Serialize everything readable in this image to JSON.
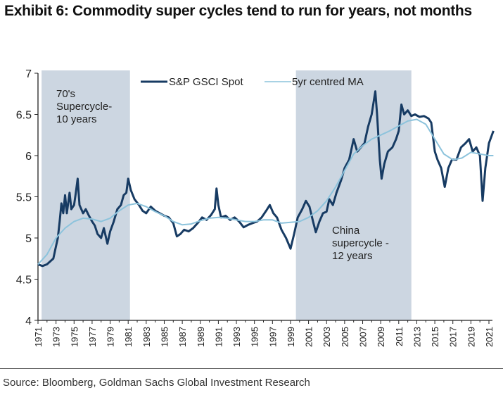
{
  "title": "Exhibit 6: Commodity super cycles tend to run for years, not months",
  "source": "Source: Bloomberg, Goldman Sachs Global Investment Research",
  "colors": {
    "spot": "#173b63",
    "ma": "#8cc3dc",
    "shade": "#ccd6e1",
    "axis": "#222222"
  },
  "chart_data": {
    "type": "line",
    "title": "Exhibit 6: Commodity super cycles tend to run for years, not months",
    "xlabel": "",
    "ylabel": "",
    "ylim": [
      4,
      7
    ],
    "xlim": [
      1971,
      2021.5
    ],
    "yticks": [
      "4",
      "4.5",
      "5",
      "5.5",
      "6",
      "6.5",
      "7"
    ],
    "xticks": [
      "1971",
      "1973",
      "1975",
      "1977",
      "1979",
      "1981",
      "1983",
      "1985",
      "1987",
      "1989",
      "1991",
      "1993",
      "1995",
      "1997",
      "1999",
      "2001",
      "2003",
      "2005",
      "2007",
      "2009",
      "2011",
      "2013",
      "2015",
      "2017",
      "2019",
      "2021"
    ],
    "legend": {
      "placement": "top-center",
      "entries": [
        "S&P GSCI Spot",
        "5yr centred MA"
      ]
    },
    "shaded_periods": [
      {
        "start": 1971.4,
        "end": 1981.2,
        "label_lines": [
          "70's",
          "Supercycle-",
          "10 years"
        ]
      },
      {
        "start": 1999.6,
        "end": 2012.4,
        "label_lines": [
          "China",
          "supercycle -",
          "12 years"
        ]
      }
    ],
    "series": [
      {
        "name": "S&P GSCI Spot",
        "points": [
          [
            1971,
            4.68
          ],
          [
            1971.5,
            4.66
          ],
          [
            1972,
            4.68
          ],
          [
            1972.4,
            4.72
          ],
          [
            1972.7,
            4.75
          ],
          [
            1973,
            4.9
          ],
          [
            1973.2,
            5.0
          ],
          [
            1973.4,
            5.2
          ],
          [
            1973.6,
            5.42
          ],
          [
            1973.8,
            5.3
          ],
          [
            1974,
            5.52
          ],
          [
            1974.2,
            5.3
          ],
          [
            1974.5,
            5.55
          ],
          [
            1974.7,
            5.35
          ],
          [
            1975,
            5.4
          ],
          [
            1975.2,
            5.55
          ],
          [
            1975.4,
            5.72
          ],
          [
            1975.6,
            5.4
          ],
          [
            1976,
            5.3
          ],
          [
            1976.3,
            5.35
          ],
          [
            1976.6,
            5.28
          ],
          [
            1977,
            5.2
          ],
          [
            1977.3,
            5.15
          ],
          [
            1977.6,
            5.05
          ],
          [
            1978,
            5.0
          ],
          [
            1978.3,
            5.12
          ],
          [
            1978.7,
            4.93
          ],
          [
            1979,
            5.08
          ],
          [
            1979.4,
            5.2
          ],
          [
            1979.8,
            5.35
          ],
          [
            1980.2,
            5.4
          ],
          [
            1980.5,
            5.52
          ],
          [
            1980.8,
            5.55
          ],
          [
            1981,
            5.72
          ],
          [
            1981.3,
            5.58
          ],
          [
            1981.7,
            5.47
          ],
          [
            1982.2,
            5.4
          ],
          [
            1982.6,
            5.33
          ],
          [
            1983,
            5.3
          ],
          [
            1983.5,
            5.38
          ],
          [
            1984,
            5.33
          ],
          [
            1984.5,
            5.3
          ],
          [
            1985,
            5.27
          ],
          [
            1985.5,
            5.25
          ],
          [
            1986,
            5.18
          ],
          [
            1986.4,
            5.02
          ],
          [
            1986.8,
            5.05
          ],
          [
            1987.2,
            5.1
          ],
          [
            1987.7,
            5.08
          ],
          [
            1988.2,
            5.12
          ],
          [
            1988.7,
            5.18
          ],
          [
            1989.2,
            5.25
          ],
          [
            1989.7,
            5.22
          ],
          [
            1990.2,
            5.28
          ],
          [
            1990.6,
            5.35
          ],
          [
            1990.8,
            5.6
          ],
          [
            1991,
            5.4
          ],
          [
            1991.3,
            5.25
          ],
          [
            1991.8,
            5.27
          ],
          [
            1992.3,
            5.22
          ],
          [
            1992.8,
            5.25
          ],
          [
            1993.3,
            5.2
          ],
          [
            1993.8,
            5.13
          ],
          [
            1994.3,
            5.16
          ],
          [
            1994.8,
            5.18
          ],
          [
            1995.3,
            5.2
          ],
          [
            1995.8,
            5.25
          ],
          [
            1996.3,
            5.33
          ],
          [
            1996.7,
            5.4
          ],
          [
            1997.1,
            5.3
          ],
          [
            1997.5,
            5.25
          ],
          [
            1998,
            5.1
          ],
          [
            1998.5,
            5.0
          ],
          [
            1999,
            4.87
          ],
          [
            1999.4,
            5.05
          ],
          [
            1999.8,
            5.25
          ],
          [
            2000.3,
            5.35
          ],
          [
            2000.7,
            5.45
          ],
          [
            2001.1,
            5.38
          ],
          [
            2001.5,
            5.2
          ],
          [
            2001.8,
            5.07
          ],
          [
            2002.2,
            5.2
          ],
          [
            2002.6,
            5.3
          ],
          [
            2003,
            5.32
          ],
          [
            2003.3,
            5.47
          ],
          [
            2003.7,
            5.4
          ],
          [
            2004.1,
            5.55
          ],
          [
            2004.6,
            5.7
          ],
          [
            2005,
            5.85
          ],
          [
            2005.5,
            5.95
          ],
          [
            2006,
            6.2
          ],
          [
            2006.4,
            6.05
          ],
          [
            2006.8,
            6.1
          ],
          [
            2007.2,
            6.15
          ],
          [
            2007.6,
            6.35
          ],
          [
            2008,
            6.5
          ],
          [
            2008.4,
            6.78
          ],
          [
            2008.6,
            6.5
          ],
          [
            2008.9,
            5.95
          ],
          [
            2009.1,
            5.72
          ],
          [
            2009.4,
            5.9
          ],
          [
            2009.8,
            6.05
          ],
          [
            2010.3,
            6.1
          ],
          [
            2010.7,
            6.2
          ],
          [
            2011,
            6.3
          ],
          [
            2011.3,
            6.62
          ],
          [
            2011.6,
            6.5
          ],
          [
            2012,
            6.55
          ],
          [
            2012.4,
            6.48
          ],
          [
            2012.8,
            6.5
          ],
          [
            2013.3,
            6.47
          ],
          [
            2013.8,
            6.48
          ],
          [
            2014.3,
            6.45
          ],
          [
            2014.6,
            6.4
          ],
          [
            2015,
            6.05
          ],
          [
            2015.3,
            5.95
          ],
          [
            2015.7,
            5.85
          ],
          [
            2016.1,
            5.62
          ],
          [
            2016.5,
            5.85
          ],
          [
            2016.9,
            5.95
          ],
          [
            2017.4,
            5.95
          ],
          [
            2017.9,
            6.1
          ],
          [
            2018.4,
            6.15
          ],
          [
            2018.8,
            6.2
          ],
          [
            2019.2,
            6.05
          ],
          [
            2019.6,
            6.1
          ],
          [
            2020,
            6.0
          ],
          [
            2020.3,
            5.45
          ],
          [
            2020.6,
            5.85
          ],
          [
            2021,
            6.15
          ],
          [
            2021.5,
            6.3
          ]
        ]
      },
      {
        "name": "5yr centred MA",
        "points": [
          [
            1971,
            4.68
          ],
          [
            1972,
            4.8
          ],
          [
            1973,
            5.0
          ],
          [
            1974,
            5.12
          ],
          [
            1975,
            5.2
          ],
          [
            1976,
            5.24
          ],
          [
            1977,
            5.23
          ],
          [
            1978,
            5.2
          ],
          [
            1979,
            5.24
          ],
          [
            1980,
            5.33
          ],
          [
            1981,
            5.4
          ],
          [
            1982,
            5.42
          ],
          [
            1983,
            5.38
          ],
          [
            1984,
            5.32
          ],
          [
            1985,
            5.27
          ],
          [
            1986,
            5.2
          ],
          [
            1987,
            5.16
          ],
          [
            1988,
            5.17
          ],
          [
            1989,
            5.21
          ],
          [
            1990,
            5.24
          ],
          [
            1991,
            5.25
          ],
          [
            1992,
            5.24
          ],
          [
            1993,
            5.22
          ],
          [
            1994,
            5.2
          ],
          [
            1995,
            5.2
          ],
          [
            1996,
            5.22
          ],
          [
            1997,
            5.22
          ],
          [
            1998,
            5.18
          ],
          [
            1999,
            5.19
          ],
          [
            2000,
            5.2
          ],
          [
            2001,
            5.25
          ],
          [
            2002,
            5.33
          ],
          [
            2003,
            5.45
          ],
          [
            2004,
            5.62
          ],
          [
            2005,
            5.82
          ],
          [
            2006,
            6.02
          ],
          [
            2007,
            6.12
          ],
          [
            2008,
            6.2
          ],
          [
            2009,
            6.25
          ],
          [
            2010,
            6.3
          ],
          [
            2011,
            6.36
          ],
          [
            2012,
            6.42
          ],
          [
            2013,
            6.44
          ],
          [
            2014,
            6.38
          ],
          [
            2015,
            6.2
          ],
          [
            2016,
            6.02
          ],
          [
            2017,
            5.95
          ],
          [
            2018,
            5.97
          ],
          [
            2019,
            6.04
          ],
          [
            2020,
            6.02
          ],
          [
            2021,
            6.0
          ],
          [
            2021.5,
            6.0
          ]
        ]
      }
    ]
  }
}
